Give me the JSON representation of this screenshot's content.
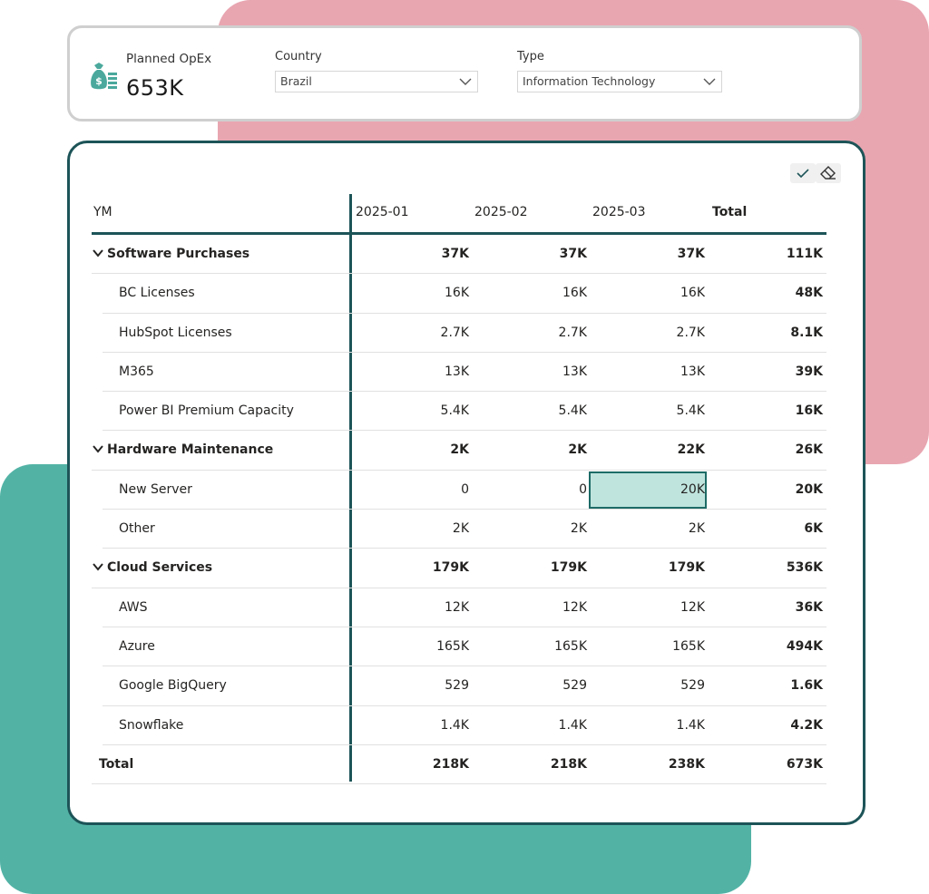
{
  "kpi": {
    "label": "Planned OpEx",
    "value": "653K",
    "icon": "money-bag-icon"
  },
  "slicers": [
    {
      "label": "Country",
      "value": "Brazil"
    },
    {
      "label": "Type",
      "value": "Information Technology"
    }
  ],
  "colors": {
    "accent": "#1d5458",
    "pink": "#e8a6b1",
    "teal": "#52b3a5",
    "selected": "#bfe4dd"
  },
  "toolbar": {
    "icons": [
      "check-icon",
      "eraser-icon"
    ]
  },
  "matrix": {
    "columns": [
      "YM",
      "2025-01",
      "2025-02",
      "2025-03",
      "Total"
    ],
    "rows": [
      {
        "type": "cat",
        "label": "Software Purchases",
        "values": [
          "37K",
          "37K",
          "37K",
          "111K"
        ]
      },
      {
        "type": "sub",
        "label": "BC Licenses",
        "values": [
          "16K",
          "16K",
          "16K",
          "48K"
        ]
      },
      {
        "type": "sub",
        "label": "HubSpot Licenses",
        "values": [
          "2.7K",
          "2.7K",
          "2.7K",
          "8.1K"
        ]
      },
      {
        "type": "sub",
        "label": "M365",
        "values": [
          "13K",
          "13K",
          "13K",
          "39K"
        ]
      },
      {
        "type": "sub",
        "label": "Power BI Premium Capacity",
        "values": [
          "5.4K",
          "5.4K",
          "5.4K",
          "16K"
        ]
      },
      {
        "type": "cat",
        "label": "Hardware Maintenance",
        "values": [
          "2K",
          "2K",
          "22K",
          "26K"
        ]
      },
      {
        "type": "sub",
        "label": "New Server",
        "values": [
          "0",
          "0",
          "20K",
          "20K"
        ],
        "selected": 2
      },
      {
        "type": "sub",
        "label": "Other",
        "values": [
          "2K",
          "2K",
          "2K",
          "6K"
        ]
      },
      {
        "type": "cat",
        "label": "Cloud Services",
        "values": [
          "179K",
          "179K",
          "179K",
          "536K"
        ]
      },
      {
        "type": "sub",
        "label": "AWS",
        "values": [
          "12K",
          "12K",
          "12K",
          "36K"
        ]
      },
      {
        "type": "sub",
        "label": "Azure",
        "values": [
          "165K",
          "165K",
          "165K",
          "494K"
        ]
      },
      {
        "type": "sub",
        "label": "Google BigQuery",
        "values": [
          "529",
          "529",
          "529",
          "1.6K"
        ]
      },
      {
        "type": "sub",
        "label": "Snowflake",
        "values": [
          "1.4K",
          "1.4K",
          "1.4K",
          "4.2K"
        ]
      },
      {
        "type": "total",
        "label": "Total",
        "values": [
          "218K",
          "218K",
          "238K",
          "673K"
        ]
      }
    ]
  }
}
